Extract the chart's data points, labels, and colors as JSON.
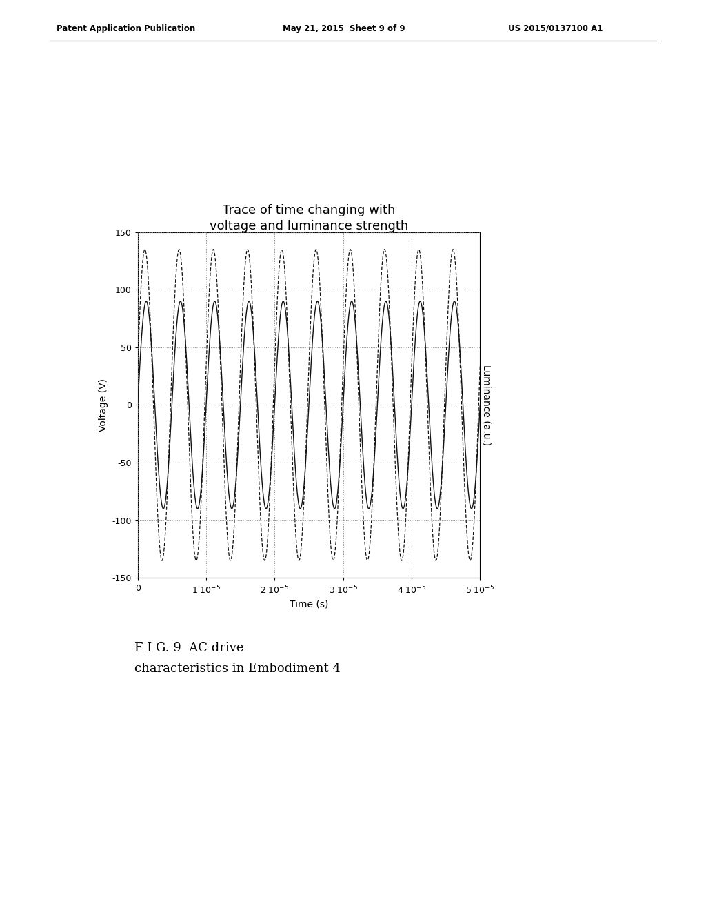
{
  "title_line1": "Trace of time changing with",
  "title_line2": "voltage and luminance strength",
  "xlabel": "Time (s)",
  "ylabel_left": "Voltage (V)",
  "ylabel_right": "Luminance (a.u.)",
  "caption_line1": "F I G. 9  AC drive",
  "caption_line2": "characteristics in Embodiment 4",
  "header_left": "Patent Application Publication",
  "header_mid": "May 21, 2015  Sheet 9 of 9",
  "header_right": "US 2015/0137100 A1",
  "xlim": [
    0,
    5e-05
  ],
  "ylim": [
    -150,
    150
  ],
  "xticks": [
    0,
    1e-05,
    2e-05,
    3e-05,
    4e-05,
    5e-05
  ],
  "yticks": [
    -150,
    -100,
    -50,
    0,
    50,
    100,
    150
  ],
  "voltage_amplitude": 90,
  "luminance_amplitude": 135,
  "frequency": 200000,
  "phase_shift": 0.25,
  "background_color": "#ffffff",
  "line_color": "#111111",
  "grid_color": "#888888",
  "title_fontsize": 13,
  "label_fontsize": 10,
  "tick_fontsize": 9,
  "caption_fontsize": 13,
  "header_fontsize": 8.5
}
